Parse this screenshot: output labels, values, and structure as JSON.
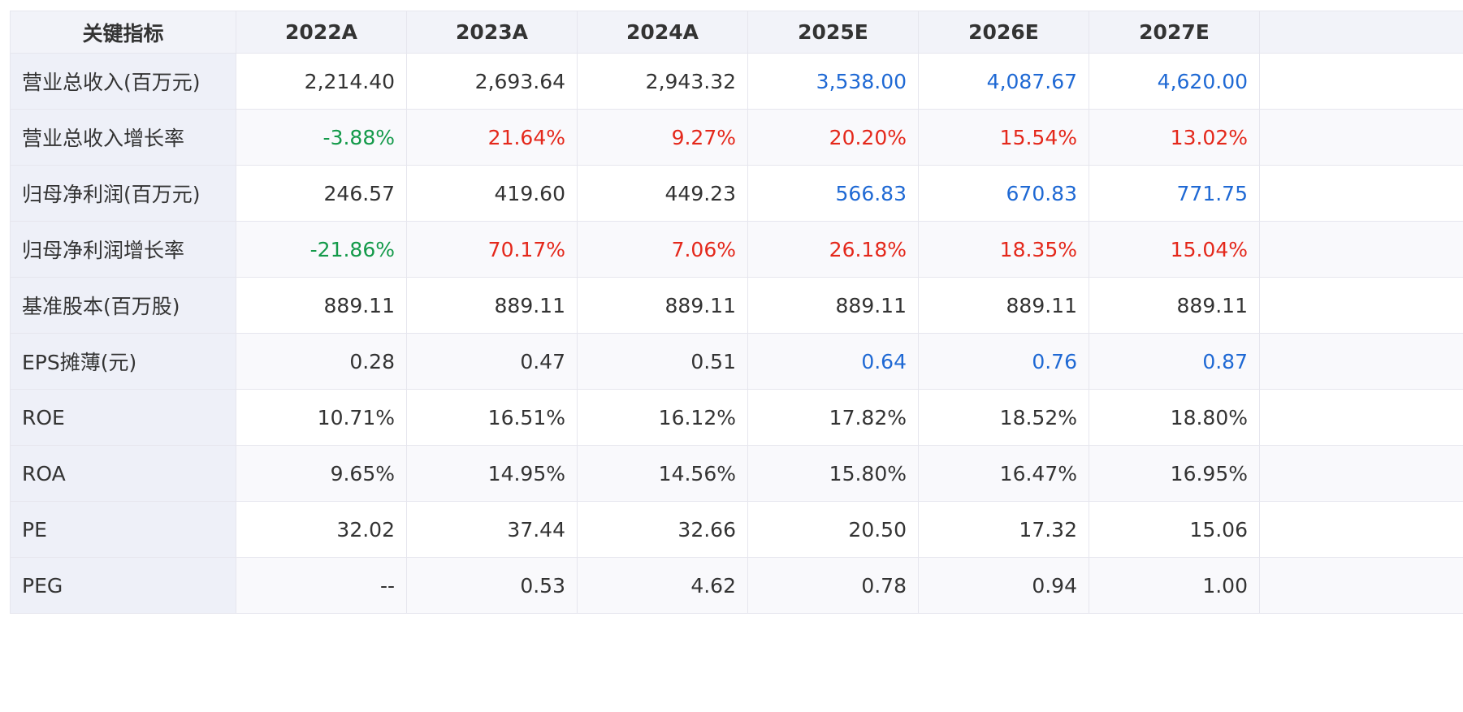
{
  "header": {
    "label_col": "关键指标",
    "years": [
      "2022A",
      "2023A",
      "2024A",
      "2025E",
      "2026E",
      "2027E"
    ]
  },
  "colors": {
    "positive_growth": "#e4281b",
    "negative_growth": "#149a4a",
    "forecast": "#1f69d4",
    "default_text": "#333333",
    "header_bg": "#f2f3f9",
    "label_bg": "#eef0f8"
  },
  "rows": [
    {
      "label": "营业总收入(百万元)",
      "values": [
        "2,214.40",
        "2,693.64",
        "2,943.32",
        "3,538.00",
        "4,087.67",
        "4,620.00"
      ],
      "styles": [
        "neutral",
        "neutral",
        "neutral",
        "forecast",
        "forecast",
        "forecast"
      ]
    },
    {
      "label": "营业总收入增长率",
      "values": [
        "-3.88%",
        "21.64%",
        "9.27%",
        "20.20%",
        "15.54%",
        "13.02%"
      ],
      "styles": [
        "down",
        "up",
        "up",
        "up",
        "up",
        "up"
      ]
    },
    {
      "label": "归母净利润(百万元)",
      "values": [
        "246.57",
        "419.60",
        "449.23",
        "566.83",
        "670.83",
        "771.75"
      ],
      "styles": [
        "neutral",
        "neutral",
        "neutral",
        "forecast",
        "forecast",
        "forecast"
      ]
    },
    {
      "label": "归母净利润增长率",
      "values": [
        "-21.86%",
        "70.17%",
        "7.06%",
        "26.18%",
        "18.35%",
        "15.04%"
      ],
      "styles": [
        "down",
        "up",
        "up",
        "up",
        "up",
        "up"
      ]
    },
    {
      "label": "基准股本(百万股)",
      "values": [
        "889.11",
        "889.11",
        "889.11",
        "889.11",
        "889.11",
        "889.11"
      ],
      "styles": [
        "neutral",
        "neutral",
        "neutral",
        "neutral",
        "neutral",
        "neutral"
      ]
    },
    {
      "label": "EPS摊薄(元)",
      "values": [
        "0.28",
        "0.47",
        "0.51",
        "0.64",
        "0.76",
        "0.87"
      ],
      "styles": [
        "neutral",
        "neutral",
        "neutral",
        "forecast",
        "forecast",
        "forecast"
      ]
    },
    {
      "label": "ROE",
      "values": [
        "10.71%",
        "16.51%",
        "16.12%",
        "17.82%",
        "18.52%",
        "18.80%"
      ],
      "styles": [
        "neutral",
        "neutral",
        "neutral",
        "neutral",
        "neutral",
        "neutral"
      ]
    },
    {
      "label": "ROA",
      "values": [
        "9.65%",
        "14.95%",
        "14.56%",
        "15.80%",
        "16.47%",
        "16.95%"
      ],
      "styles": [
        "neutral",
        "neutral",
        "neutral",
        "neutral",
        "neutral",
        "neutral"
      ]
    },
    {
      "label": "PE",
      "values": [
        "32.02",
        "37.44",
        "32.66",
        "20.50",
        "17.32",
        "15.06"
      ],
      "styles": [
        "neutral",
        "neutral",
        "neutral",
        "neutral",
        "neutral",
        "neutral"
      ]
    },
    {
      "label": "PEG",
      "values": [
        "--",
        "0.53",
        "4.62",
        "0.78",
        "0.94",
        "1.00"
      ],
      "styles": [
        "neutral",
        "neutral",
        "neutral",
        "neutral",
        "neutral",
        "neutral"
      ]
    }
  ]
}
